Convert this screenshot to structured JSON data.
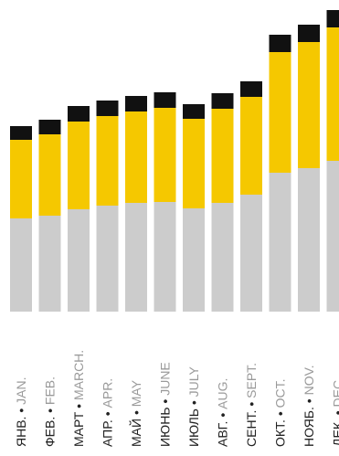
{
  "chart_data": {
    "type": "bar",
    "stacked": true,
    "categories": [
      {
        "ru": "ЯНВ.",
        "en": "JAN."
      },
      {
        "ru": "ФЕВ.",
        "en": "FEB."
      },
      {
        "ru": "МАРТ",
        "en": "MARCH."
      },
      {
        "ru": "АПР.",
        "en": "APR."
      },
      {
        "ru": "МАЙ",
        "en": "MAY"
      },
      {
        "ru": "ИЮНЬ",
        "en": "JUNE"
      },
      {
        "ru": "ИЮЛЬ",
        "en": "JULY"
      },
      {
        "ru": "АВГ.",
        "en": "AUG."
      },
      {
        "ru": "СЕНТ.",
        "en": "SEPT."
      },
      {
        "ru": "ОКТ.",
        "en": "OCT."
      },
      {
        "ru": "НОЯБ.",
        "en": "NOV."
      },
      {
        "ru": "ДЕК.",
        "en": "DEC."
      }
    ],
    "separator": "•",
    "series": [
      {
        "color": "#cccccc",
        "values": [
          102,
          105,
          112,
          116,
          119,
          120,
          113,
          119,
          128,
          152,
          157,
          165
        ]
      },
      {
        "color": "#f5c800",
        "values": [
          86,
          89,
          96,
          98,
          100,
          103,
          98,
          103,
          107,
          132,
          138,
          146
        ]
      },
      {
        "color": "#111111",
        "values": [
          15,
          16,
          17,
          17,
          17,
          17,
          16,
          17,
          17,
          19,
          19,
          19
        ]
      }
    ],
    "ylim": [
      0,
      332
    ],
    "grid": false,
    "legend": "none"
  }
}
